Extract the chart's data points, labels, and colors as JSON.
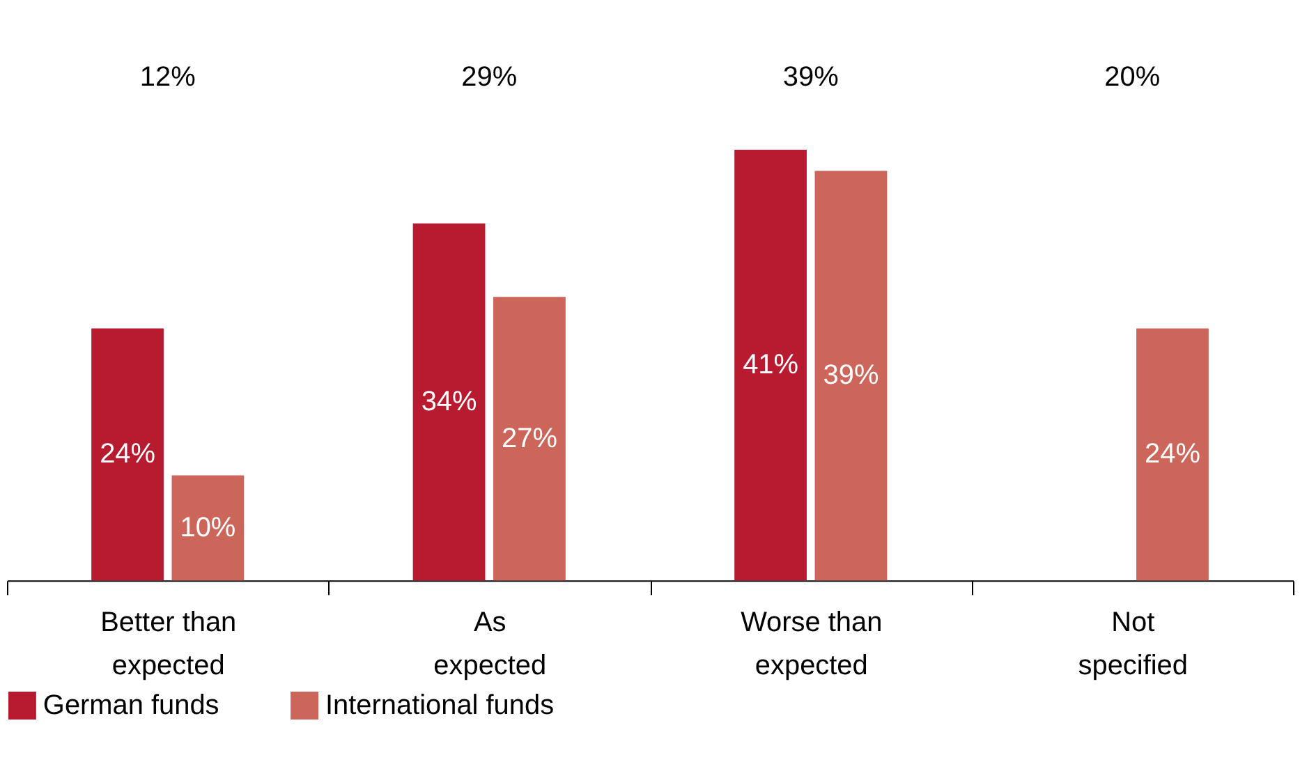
{
  "chart_data": {
    "type": "bar",
    "categories": [
      "Better than expected",
      "As expected",
      "Worse than expected",
      "Not specified"
    ],
    "series": [
      {
        "name": "German funds",
        "color": "#b81b30",
        "values": [
          24,
          34,
          41,
          null
        ],
        "value_labels": [
          "24%",
          "34%",
          "41%",
          null
        ]
      },
      {
        "name": "International funds",
        "color": "#cd665a",
        "values": [
          10,
          27,
          39,
          24
        ],
        "value_labels": [
          "10%",
          "27%",
          "39%",
          "24%"
        ]
      }
    ],
    "annotations": [
      "12%",
      "29%",
      "39%",
      "20%"
    ],
    "legend": "bottom left",
    "grid": false
  }
}
